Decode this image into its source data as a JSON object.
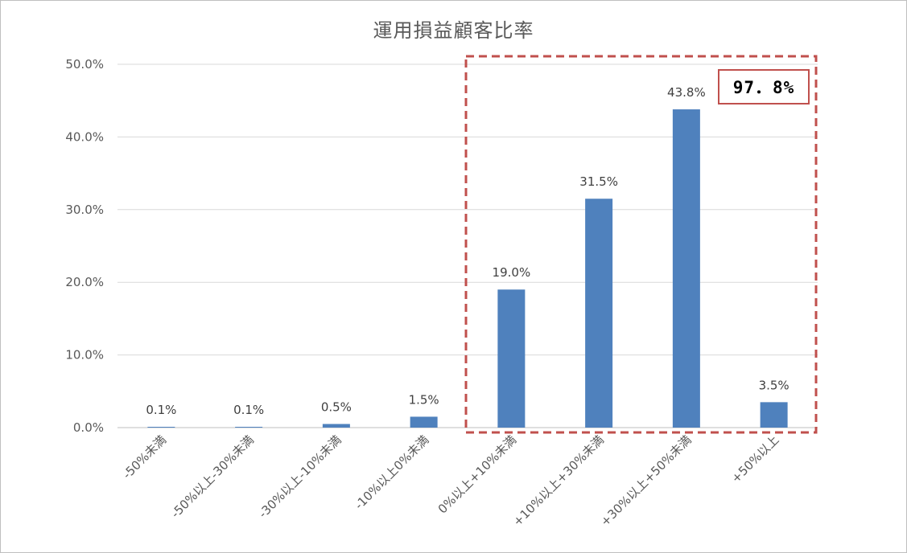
{
  "chart_data": {
    "type": "bar",
    "title": "運用損益顧客比率",
    "categories": [
      "-50%未満",
      "-50%以上-30%未満",
      "-30%以上-10%未満",
      "-10%以上0%未満",
      "0%以上+10%未満",
      "+10%以上+30%未満",
      "+30%以上+50%未満",
      "+50%以上"
    ],
    "values": [
      0.1,
      0.1,
      0.5,
      1.5,
      19.0,
      31.5,
      43.8,
      3.5
    ],
    "data_labels": [
      "0.1%",
      "0.1%",
      "0.5%",
      "1.5%",
      "19.0%",
      "31.5%",
      "43.8%",
      "3.5%"
    ],
    "y_ticks": [
      "0.0%",
      "10.0%",
      "20.0%",
      "30.0%",
      "40.0%",
      "50.0%"
    ],
    "ylim": [
      0,
      50
    ],
    "grid": true,
    "bar_color": "#4f81bd",
    "highlight": {
      "categories": [
        "0%以上+10%未満",
        "+10%以上+30%未満",
        "+30%以上+50%未満",
        "+50%以上"
      ],
      "label": "97．8%",
      "color": "#c0504d"
    }
  }
}
